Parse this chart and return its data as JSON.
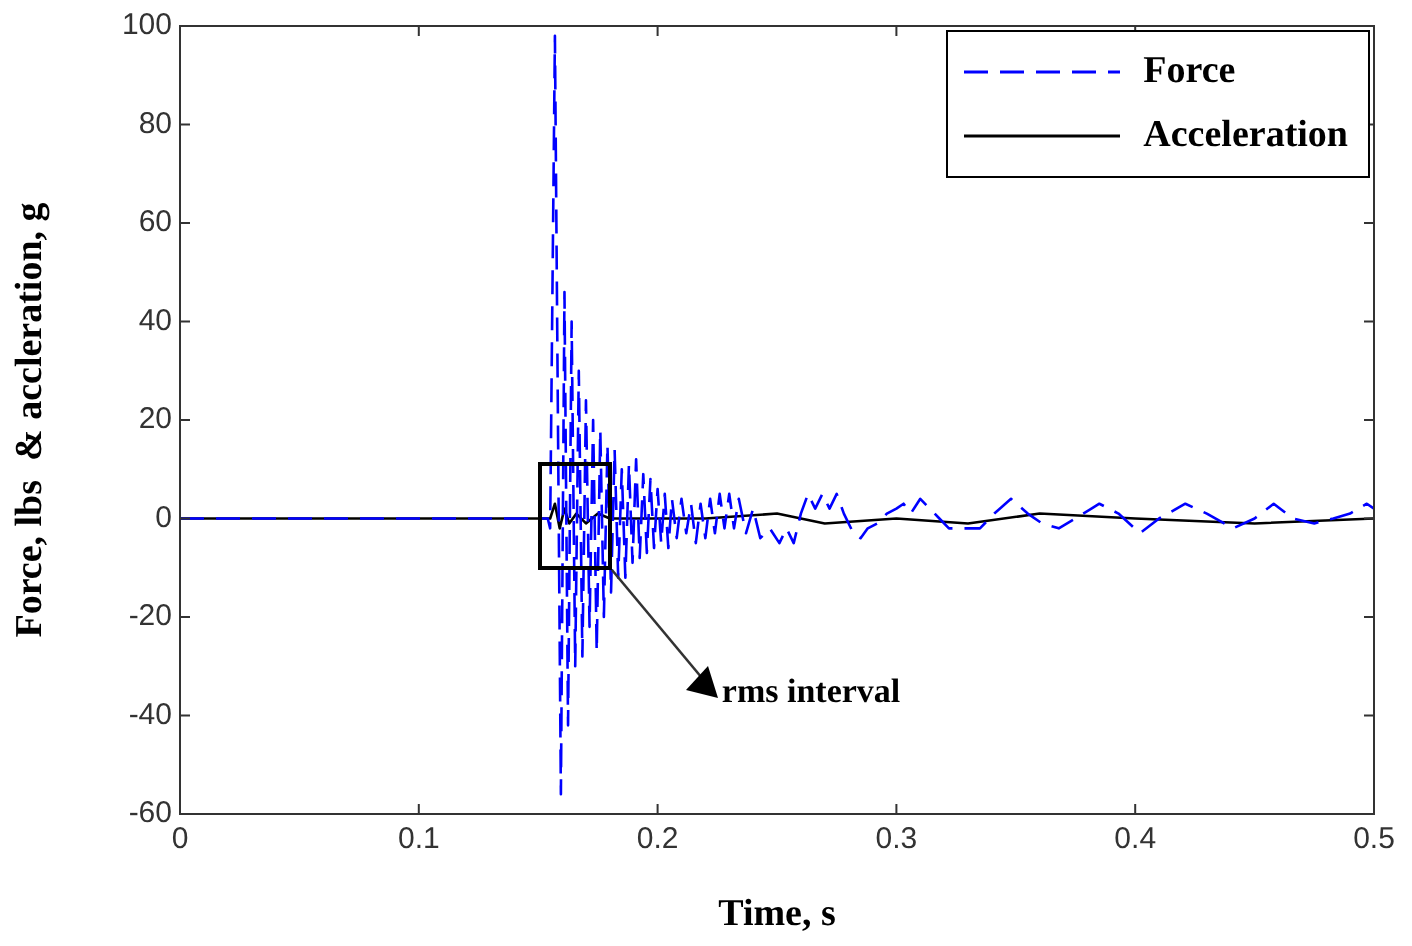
{
  "chart_data": {
    "type": "line",
    "xlabel": "Time, s",
    "ylabel": "Force, lbs  & accleration, g",
    "xlim": [
      0,
      0.5
    ],
    "xticks": [
      0,
      0.1,
      0.2,
      0.3,
      0.4,
      0.5
    ],
    "ylim": [
      -60,
      100
    ],
    "yticks": [
      -60,
      -40,
      -20,
      0,
      20,
      40,
      60,
      80,
      100
    ],
    "grid": false,
    "legend": "top right",
    "marker": "none",
    "annotations": [
      {
        "text": "rms interval",
        "x": 0.18,
        "y": -10
      }
    ],
    "series": [
      {
        "name": "Force",
        "color": "#0000ff",
        "line_style": "dashed",
        "x": [
          0,
          0.154,
          0.155,
          0.157,
          0.1595,
          0.161,
          0.1625,
          0.164,
          0.1655,
          0.167,
          0.1685,
          0.17,
          0.1715,
          0.173,
          0.1745,
          0.176,
          0.1775,
          0.179,
          0.1805,
          0.182,
          0.1835,
          0.185,
          0.1865,
          0.188,
          0.1895,
          0.191,
          0.1925,
          0.194,
          0.1955,
          0.197,
          0.1985,
          0.2,
          0.2015,
          0.203,
          0.2045,
          0.206,
          0.208,
          0.21,
          0.212,
          0.214,
          0.216,
          0.218,
          0.22,
          0.222,
          0.224,
          0.226,
          0.228,
          0.23,
          0.232,
          0.234,
          0.237,
          0.24,
          0.243,
          0.247,
          0.251,
          0.254,
          0.257,
          0.26,
          0.263,
          0.266,
          0.269,
          0.272,
          0.275,
          0.278,
          0.282,
          0.285,
          0.288,
          0.292,
          0.296,
          0.3,
          0.303,
          0.306,
          0.31,
          0.314,
          0.318,
          0.322,
          0.329,
          0.335,
          0.341,
          0.348,
          0.355,
          0.361,
          0.368,
          0.375,
          0.385,
          0.393,
          0.402,
          0.41,
          0.421,
          0.43,
          0.441,
          0.45,
          0.458,
          0.466,
          0.475,
          0.483,
          0.49,
          0.497,
          0.5
        ],
        "values": [
          0,
          0,
          -2,
          98,
          -56,
          46,
          -42,
          40,
          -30,
          30,
          -28,
          24,
          -22,
          20,
          -27,
          18,
          -20,
          15,
          -15,
          14,
          -12,
          10,
          -12,
          11,
          -9,
          12,
          -8,
          9,
          -7,
          8,
          -6,
          6,
          -5,
          5,
          -6,
          4,
          -4,
          4,
          -3,
          3,
          -5,
          3,
          -4,
          4,
          -3,
          5,
          -2,
          5,
          -2,
          4,
          -3,
          2,
          -4,
          -2,
          -5,
          -2,
          -5,
          1,
          5,
          2,
          5,
          2,
          5,
          1,
          -3,
          -4,
          -2,
          -1,
          1,
          2,
          3,
          1,
          4,
          2,
          0,
          -2,
          -2,
          -2,
          1,
          4,
          1,
          -1,
          -2,
          0,
          3,
          1,
          -3,
          0,
          3,
          1,
          -2,
          0,
          3,
          0,
          -1,
          0,
          1,
          3,
          2
        ]
      },
      {
        "name": "Acceleration",
        "color": "#000000",
        "line_style": "solid",
        "x": [
          0,
          0.155,
          0.157,
          0.159,
          0.161,
          0.163,
          0.166,
          0.17,
          0.175,
          0.18,
          0.22,
          0.25,
          0.27,
          0.3,
          0.33,
          0.36,
          0.4,
          0.45,
          0.5
        ],
        "values": [
          0,
          0,
          3,
          -2,
          2,
          -1,
          1,
          -1,
          1,
          0,
          0,
          1,
          -1,
          0,
          -1,
          1,
          0,
          -1,
          0
        ]
      }
    ]
  }
}
